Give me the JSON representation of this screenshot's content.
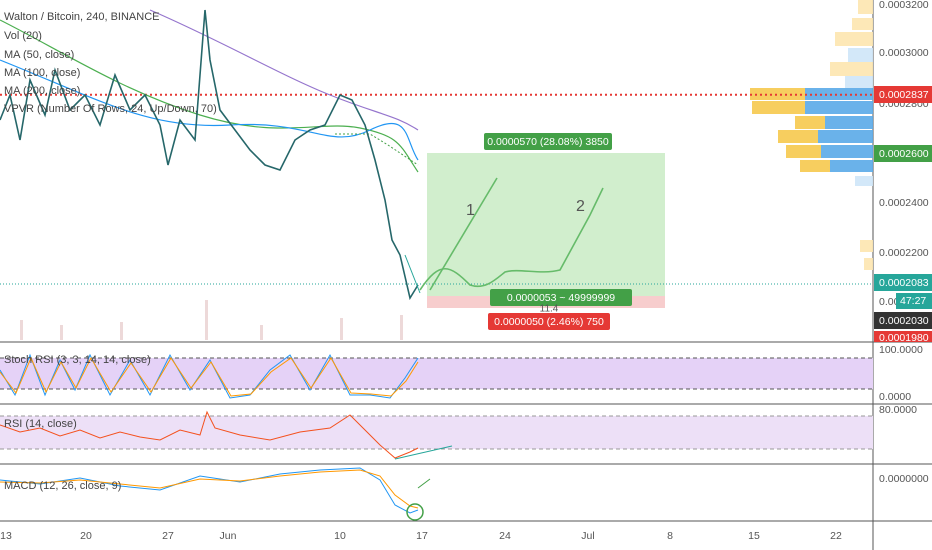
{
  "legend": {
    "symbol": "Walton / Bitcoin, 240, BINANCE",
    "indicators": [
      "Vol (20)",
      "MA (50, close)",
      "MA (100, close)",
      "MA (200, close)",
      "VPVR (Number Of Rows, 24, Up/Down, 70)"
    ]
  },
  "price_axis": {
    "labels": [
      "0.0003200",
      "0.0003000",
      "0.0002800",
      "0.0002400",
      "0.0002200",
      "0.000"
    ],
    "markers": {
      "red_line": "0.0002837",
      "target": "0.0002600",
      "last": "0.0002083",
      "countdown": "47:27",
      "entry": "0.0002030",
      "stop": "0.0001980"
    }
  },
  "position": {
    "profit": "0.0000570 (28.08%) 3850",
    "middle": "0.0000053 ~ 49999999",
    "ratio": "11.4",
    "loss": "0.0000050 (2.46%) 750"
  },
  "paths": {
    "first": "1",
    "second": "2"
  },
  "stoch": {
    "label": "Stoch RSI (3, 3, 14, 14, close)",
    "top": "100.0000",
    "bottom": "0.0000"
  },
  "rsi": {
    "label": "RSI (14, close)",
    "top": "80.0000"
  },
  "macd": {
    "label": "MACD (12, 26, close, 9)",
    "zero": "0.0000000"
  },
  "time_axis": [
    "13",
    "20",
    "27",
    "Jun",
    "10",
    "17",
    "24",
    "Jul",
    "8",
    "15",
    "22"
  ]
}
